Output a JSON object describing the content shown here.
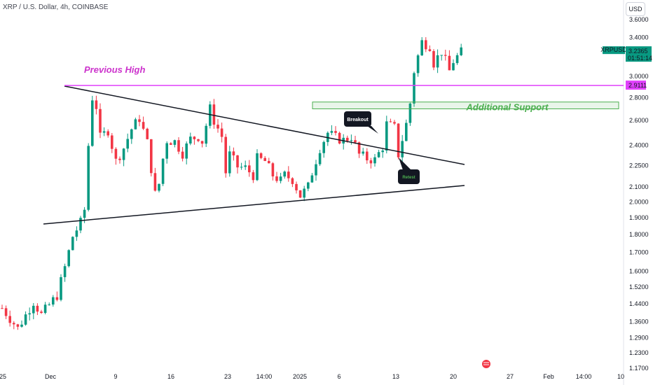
{
  "header": {
    "title": "XRP / U.S. Dollar, 4h, COINBASE"
  },
  "currency_button": "USD",
  "chart_data": {
    "type": "candlestick",
    "symbol": "XRPUSD",
    "interval": "4h",
    "exchange": "COINBASE",
    "y_scale": "log",
    "ylim": [
      1.15,
      3.7
    ],
    "y_ticks": [
      "3.6000",
      "3.4000",
      "3.0000",
      "2.8000",
      "2.6000",
      "2.4000",
      "2.2500",
      "2.1000",
      "2.0000",
      "1.9000",
      "1.8000",
      "1.7000",
      "1.6000",
      "1.5200",
      "1.4400",
      "1.3600",
      "1.2900",
      "1.2300",
      "1.1700"
    ],
    "x_ticks": [
      "25",
      "Dec",
      "9",
      "16",
      "23",
      "14:00",
      "2025",
      "6",
      "13",
      "20",
      "27",
      "Feb",
      "14:00",
      "10"
    ],
    "last_price": {
      "symbol": "XRPUSD",
      "price": "3.2365",
      "countdown": "01:51:14",
      "color": "#089981"
    },
    "level_label": {
      "price": "2.9111",
      "color": "#e040fb"
    },
    "colors": {
      "up": "#089981",
      "down": "#f23645",
      "annotation": "#cc33cc",
      "support": "#4caf50"
    },
    "price_path": [
      [
        0,
        1.42
      ],
      [
        4,
        1.33
      ],
      [
        8,
        1.45
      ],
      [
        10,
        1.39
      ],
      [
        14,
        1.48
      ],
      [
        16,
        1.62
      ],
      [
        18,
        1.79
      ],
      [
        20,
        1.87
      ],
      [
        21,
        1.95
      ],
      [
        22,
        2.4
      ],
      [
        23,
        2.8
      ],
      [
        24,
        2.72
      ],
      [
        25,
        2.46
      ],
      [
        27,
        2.52
      ],
      [
        29,
        2.28
      ],
      [
        31,
        2.38
      ],
      [
        33,
        2.53
      ],
      [
        35,
        2.62
      ],
      [
        37,
        2.42
      ],
      [
        39,
        2.05
      ],
      [
        40,
        2.12
      ],
      [
        41,
        2.3
      ],
      [
        42,
        2.44
      ],
      [
        44,
        2.43
      ],
      [
        46,
        2.34
      ],
      [
        48,
        2.45
      ],
      [
        50,
        2.47
      ],
      [
        51,
        2.43
      ],
      [
        53,
        2.7
      ],
      [
        54,
        2.6
      ],
      [
        56,
        2.47
      ],
      [
        57,
        2.2
      ],
      [
        58,
        2.33
      ],
      [
        60,
        2.24
      ],
      [
        62,
        2.23
      ],
      [
        64,
        2.18
      ],
      [
        65,
        2.3
      ],
      [
        67,
        2.28
      ],
      [
        69,
        2.18
      ],
      [
        71,
        2.14
      ],
      [
        72,
        2.18
      ],
      [
        74,
        2.15
      ],
      [
        76,
        2.04
      ],
      [
        78,
        2.1
      ],
      [
        79,
        2.2
      ],
      [
        81,
        2.38
      ],
      [
        83,
        2.5
      ],
      [
        85,
        2.46
      ],
      [
        87,
        2.44
      ],
      [
        89,
        2.47
      ],
      [
        91,
        2.33
      ],
      [
        93,
        2.3
      ],
      [
        95,
        2.29
      ],
      [
        97,
        2.39
      ],
      [
        98,
        2.57
      ],
      [
        100,
        2.54
      ],
      [
        101,
        2.33
      ],
      [
        103,
        2.57
      ],
      [
        104,
        2.75
      ],
      [
        105,
        3.05
      ],
      [
        106,
        3.2
      ],
      [
        107,
        3.35
      ],
      [
        109,
        3.31
      ],
      [
        110,
        3.13
      ],
      [
        112,
        3.25
      ],
      [
        114,
        3.05
      ],
      [
        115,
        3.15
      ],
      [
        117,
        3.24
      ]
    ],
    "annotations": {
      "previous_high": "Previous High",
      "additional_support": "Additional Support",
      "breakout": "Breakout",
      "retest": "Retest"
    }
  }
}
